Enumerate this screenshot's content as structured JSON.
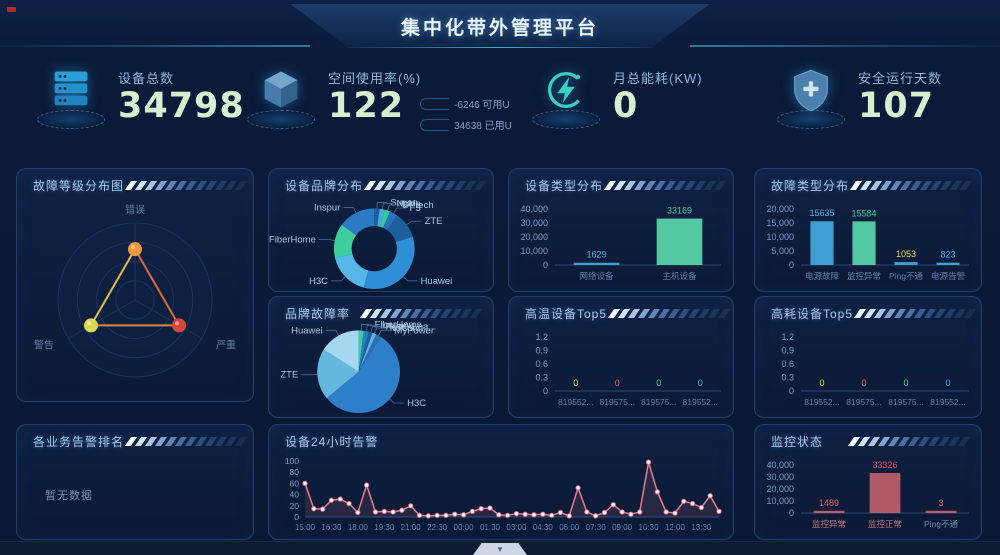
{
  "header": {
    "title": "集中化带外管理平台"
  },
  "kpis": [
    {
      "icon": "server-icon",
      "label": "设备总数",
      "value": "34798"
    },
    {
      "icon": "cube-icon",
      "label": "空间使用率(%)",
      "value": "122",
      "extras": [
        {
          "text": "-6246 可用U"
        },
        {
          "text": "34638 已用U"
        }
      ]
    },
    {
      "icon": "energy-icon",
      "label": "月总能耗(KW)",
      "value": "0"
    },
    {
      "icon": "shield-icon",
      "label": "安全运行天数",
      "value": "107"
    }
  ],
  "panels": {
    "fault_level": {
      "title": "故障等级分布图"
    },
    "brand": {
      "title": "设备品牌分布"
    },
    "device_type": {
      "title": "设备类型分布"
    },
    "fault_type": {
      "title": "故障类型分布"
    },
    "brand_fault": {
      "title": "品牌故障率"
    },
    "high_temp": {
      "title": "高温设备Top5"
    },
    "high_power": {
      "title": "高耗设备Top5"
    },
    "biz_rank": {
      "title": "各业务告警排名",
      "empty_text": "暂无数据"
    },
    "alarm_24h": {
      "title": "设备24小时告警"
    },
    "monitor": {
      "title": "监控状态"
    }
  },
  "footer": {
    "chevron": "▾"
  },
  "theme": {
    "background": "#0a1a38",
    "panel_border": "#21406e",
    "title_color": "#a8c8e8",
    "kpi_value_color": "#d6efce",
    "bar_blue": "#3e9ed2",
    "bar_green": "#52c9a2",
    "bar_red": "#b85c68",
    "line_pink": "#e87d90"
  },
  "chart_data": [
    {
      "id": "fault_level",
      "type": "radar",
      "title": "故障等级分布图",
      "axes": [
        "错误",
        "严重",
        "警告"
      ],
      "axis_colors": [
        "#ee9a3c",
        "#d8453c",
        "#ded64e"
      ],
      "values": [
        0.66,
        0.66,
        0.66
      ],
      "max": 1
    },
    {
      "id": "brand",
      "type": "donut",
      "title": "设备品牌分布",
      "slices": [
        {
          "label": "Sugon...",
          "value": 2,
          "color": "#1d5f9e"
        },
        {
          "label": "Nokia",
          "value": 2,
          "color": "#4aa8e0"
        },
        {
          "label": "DPtech",
          "value": 2,
          "color": "#35c99e"
        },
        {
          "label": "F5",
          "value": 3,
          "color": "#2a74bd"
        },
        {
          "label": "ZTE",
          "value": 10,
          "color": "#1f5f9e"
        },
        {
          "label": "Huawei",
          "value": 32,
          "color": "#2e8ed6"
        },
        {
          "label": "H3C",
          "value": 16,
          "color": "#56b6e8"
        },
        {
          "label": "FiberHome",
          "value": 13,
          "color": "#3ecf9f"
        },
        {
          "label": "Inspur",
          "value": 14,
          "color": "#2a7ac4"
        }
      ]
    },
    {
      "id": "device_type",
      "type": "bar",
      "title": "设备类型分布",
      "categories": [
        "网络设备",
        "主机设备"
      ],
      "values": [
        1629,
        33169
      ],
      "bar_colors": [
        "#3e9ed2",
        "#52c9a2"
      ],
      "value_colors": [
        "#4ab8e8",
        "#3ecf9f"
      ],
      "yticks": [
        "0",
        "10,000",
        "20,000",
        "30,000",
        "40,000"
      ],
      "ymax": 40000
    },
    {
      "id": "fault_type",
      "type": "bar",
      "title": "故障类型分布",
      "categories": [
        "电源故障",
        "监控异常",
        "Ping不通",
        "电源告警"
      ],
      "values": [
        15635,
        15584,
        1053,
        823
      ],
      "bar_colors": [
        "#3e9ed2",
        "#52c9a2",
        "#3e9ed2",
        "#3e9ed2"
      ],
      "value_colors": [
        "#4ab8e8",
        "#3ecf9f",
        "#e8d44a",
        "#4ab8e8"
      ],
      "yticks": [
        "0",
        "5,000",
        "10,000",
        "15,000",
        "20,000"
      ],
      "ymax": 20000
    },
    {
      "id": "brand_fault",
      "type": "pie",
      "title": "品牌故障率",
      "slices": [
        {
          "label": "FiberHome",
          "value": 2,
          "color": "#3ecf9f"
        },
        {
          "label": "Inspur",
          "value": 2,
          "color": "#2a7ac4"
        },
        {
          "label": "PowerLea...",
          "value": 1.5,
          "color": "#1d5f9e"
        },
        {
          "label": "foxconn",
          "value": 1.5,
          "color": "#56b6e8"
        },
        {
          "label": "MyPower",
          "value": 2,
          "color": "#2e6fae"
        },
        {
          "label": "H3C",
          "value": 55,
          "color": "#2e7fc9"
        },
        {
          "label": "ZTE",
          "value": 20,
          "color": "#63b8e0"
        },
        {
          "label": "Huawei",
          "value": 16,
          "color": "#a5d8f0"
        }
      ]
    },
    {
      "id": "high_temp",
      "type": "bar",
      "title": "高温设备Top5",
      "categories": [
        "819552...",
        "819575...",
        "819575...",
        "819552..."
      ],
      "values": [
        0,
        0,
        0,
        0
      ],
      "bar_colors": [
        "#e8d44a",
        "#e0636a",
        "#3ecf9f",
        "#4aa8e0"
      ],
      "value_colors": [
        "#e8d44a",
        "#e0636a",
        "#3ecf9f",
        "#4aa8e0"
      ],
      "yticks": [
        "0",
        "0.3",
        "0.6",
        "0.9",
        "1.2"
      ],
      "ymax": 1.2
    },
    {
      "id": "high_power",
      "type": "bar",
      "title": "高耗设备Top5",
      "categories": [
        "819552...",
        "819575...",
        "819575...",
        "819552..."
      ],
      "values": [
        0,
        0,
        0,
        0
      ],
      "bar_colors": [
        "#e8d44a",
        "#e0636a",
        "#3ecf9f",
        "#4aa8e0"
      ],
      "value_colors": [
        "#e8d44a",
        "#e0636a",
        "#3ecf9f",
        "#4aa8e0"
      ],
      "yticks": [
        "0",
        "0.3",
        "0.6",
        "0.9",
        "1.2"
      ],
      "ymax": 1.2
    },
    {
      "id": "alarm_24h",
      "type": "line",
      "title": "设备24小时告警",
      "x_labels": [
        "15:00",
        "16:30",
        "18:00",
        "19:30",
        "21:00",
        "22:30",
        "00:00",
        "01:30",
        "03:00",
        "04:30",
        "06:00",
        "07:30",
        "09:00",
        "10:30",
        "12:00",
        "13:30"
      ],
      "label_every": 3,
      "values": [
        60,
        15,
        14,
        30,
        32,
        24,
        8,
        57,
        9,
        10,
        9,
        12,
        20,
        3,
        2,
        3,
        3,
        5,
        4,
        10,
        15,
        16,
        4,
        3,
        6,
        5,
        4,
        5,
        3,
        8,
        2,
        52,
        9,
        2,
        8,
        22,
        9,
        5,
        9,
        98,
        45,
        9,
        7,
        28,
        24,
        17,
        38,
        10
      ],
      "yticks": [
        "0",
        "20",
        "40",
        "60",
        "80",
        "100"
      ],
      "ymax": 100,
      "color": "#e87d90"
    },
    {
      "id": "monitor",
      "type": "bar",
      "title": "监控状态",
      "categories": [
        "监控异常",
        "监控正常",
        "Ping不通"
      ],
      "values": [
        1489,
        33326,
        3
      ],
      "bar_colors": [
        "#c25a68",
        "#b05a68",
        "#c25a68"
      ],
      "value_colors": [
        "#e05a64",
        "#e05a64",
        "#e05a64"
      ],
      "xlabel_colors": [
        "#c47884",
        "#c47884",
        "#6f8fb4"
      ],
      "yticks": [
        "0",
        "10,000",
        "20,000",
        "30,000",
        "40,000"
      ],
      "ymax": 40000
    }
  ]
}
